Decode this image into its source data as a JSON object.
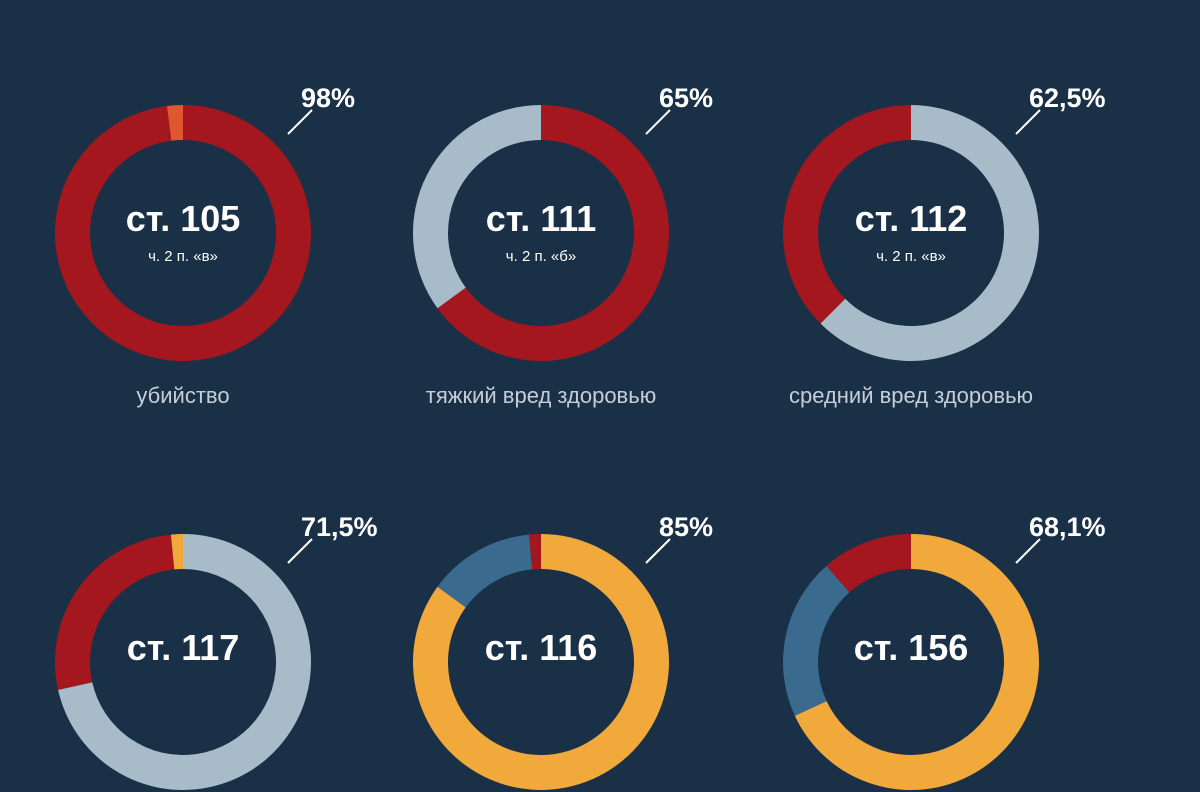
{
  "colors": {
    "background": "#1a3047",
    "red": "#a5171e",
    "orange_red": "#e0562e",
    "light_blue": "#a7bcc8",
    "yellow": "#f2a93b",
    "steel_blue": "#3b6a8f",
    "caption": "#c5ced8"
  },
  "chart_data": [
    {
      "type": "pie",
      "article": "ст. 105",
      "part": "ч. 2 п. «в»",
      "label": "98%",
      "caption": "убийство",
      "slices": [
        {
          "value": 98,
          "color": "#a5171e"
        },
        {
          "value": 2,
          "color": "#e0562e"
        }
      ]
    },
    {
      "type": "pie",
      "article": "ст. 111",
      "part": "ч. 2 п. «б»",
      "label": "65%",
      "caption": "тяжкий вред здоровью",
      "slices": [
        {
          "value": 65,
          "color": "#a5171e"
        },
        {
          "value": 35,
          "color": "#a7bcc8"
        }
      ]
    },
    {
      "type": "pie",
      "article": "ст. 112",
      "part": "ч. 2 п. «в»",
      "label": "62,5%",
      "caption": "средний вред здоровью",
      "slices": [
        {
          "value": 62.5,
          "color": "#a7bcc8"
        },
        {
          "value": 37.5,
          "color": "#a5171e"
        }
      ]
    },
    {
      "type": "pie",
      "article": "ст. 117",
      "part": "",
      "label": "71,5%",
      "caption": "",
      "slices": [
        {
          "value": 71.5,
          "color": "#a7bcc8"
        },
        {
          "value": 27,
          "color": "#a5171e"
        },
        {
          "value": 1.5,
          "color": "#f2a93b"
        }
      ]
    },
    {
      "type": "pie",
      "article": "ст. 116",
      "part": "",
      "label": "85%",
      "caption": "",
      "slices": [
        {
          "value": 85,
          "color": "#f2a93b"
        },
        {
          "value": 13.5,
          "color": "#3b6a8f"
        },
        {
          "value": 1.5,
          "color": "#a5171e"
        }
      ]
    },
    {
      "type": "pie",
      "article": "ст. 156",
      "part": "",
      "label": "68,1%",
      "caption": "",
      "slices": [
        {
          "value": 68.1,
          "color": "#f2a93b"
        },
        {
          "value": 20.4,
          "color": "#3b6a8f"
        },
        {
          "value": 11.5,
          "color": "#a5171e"
        }
      ]
    }
  ]
}
